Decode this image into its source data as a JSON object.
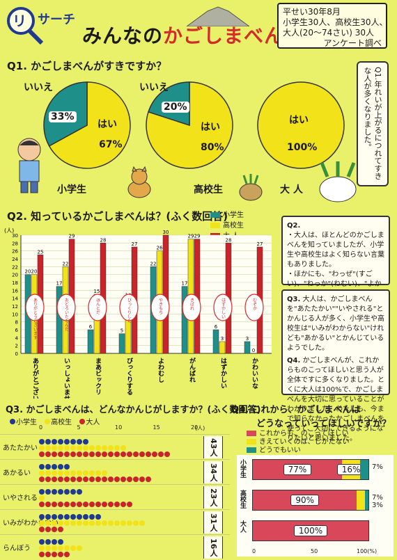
{
  "header": {
    "brand_letter": "リ",
    "brand_text": "サーチ",
    "title_prefix": "みんなの",
    "title_highlight": "かごしまべん",
    "title_suffix": "！",
    "survey_lines": [
      "平せい30年8月",
      "小学生30人、高校生30人、",
      "大人(20〜74さい) 30人",
      "アンケート調べ"
    ]
  },
  "q1": {
    "title": "Q1. かごしまべんがすきですか？",
    "pies": [
      {
        "group": "小学生",
        "yes_label": "はい",
        "no_label": "いいえ",
        "yes_pct": 67,
        "no_pct": 33,
        "yes_text": "67%",
        "no_text": "33%"
      },
      {
        "group": "高校生",
        "yes_label": "はい",
        "no_label": "いいえ",
        "yes_pct": 80,
        "no_pct": 20,
        "yes_text": "80%",
        "no_text": "20%"
      },
      {
        "group": "大 人",
        "yes_label": "はい",
        "no_label": "",
        "yes_pct": 100,
        "no_pct": 0,
        "yes_text": "100%",
        "no_text": ""
      }
    ],
    "note_label": "Q1.",
    "note": "年れいが上がるにつれてすきな人が多くなりました。",
    "colors": {
      "yes": "#f2e21a",
      "no": "#1f8f8a"
    }
  },
  "q2": {
    "title": "Q2. 知っているかごしまべんは？(ふく数回答)",
    "unit": "(人)",
    "legend": [
      {
        "name": "小学生",
        "color": "#1f8f8a"
      },
      {
        "name": "高校生",
        "color": "#f2e21a"
      },
      {
        "name": "大 人",
        "color": "#c8242a"
      }
    ],
    "meanings": [
      "ありがとうございます",
      "おどろいたもんだ",
      "ほんとだ",
      "びっくりした",
      "やきもち",
      "きばれ",
      "はずかしい",
      "むぞか"
    ],
    "note_label": "Q2.",
    "note_lines": [
      "・大人は、ほとんどのかごしまべんを知っていましたが、小学生や高校生はよく知らない言葉もありました。",
      "・ほかにも、\"わっぜ\"(すごい)、\"ねっか\"(ねむい)、\"よかにせ\"(かっこいい人)、\"じゃっど\"(そうだね)、\"おでゃ\"(おまえ)など、かごしまべんを教えてもらいました。"
    ]
  },
  "chart_data": [
    {
      "type": "pie",
      "title": "Q1. かごしまべんがすきですか？",
      "pies": [
        {
          "name": "小学生",
          "slices": [
            {
              "label": "はい",
              "value": 67
            },
            {
              "label": "いいえ",
              "value": 33
            }
          ]
        },
        {
          "name": "高校生",
          "slices": [
            {
              "label": "はい",
              "value": 80
            },
            {
              "label": "いいえ",
              "value": 20
            }
          ]
        },
        {
          "name": "大 人",
          "slices": [
            {
              "label": "はい",
              "value": 100
            }
          ]
        }
      ]
    },
    {
      "type": "bar",
      "title": "Q2. 知っているかごしまべんは？(ふく数回答)",
      "ylabel": "(人)",
      "ylim": [
        0,
        30
      ],
      "yticks": [
        0,
        5,
        10,
        15,
        20,
        25,
        30
      ],
      "categories": [
        "ありがとございます",
        "いっしょいませ",
        "まあビックリ",
        "びっくりする",
        "よわむし",
        "がんばれ",
        "はずかしい",
        "かわいいな"
      ],
      "series": [
        {
          "name": "小学生",
          "values": [
            20,
            17,
            6,
            5,
            22,
            17,
            6,
            3
          ]
        },
        {
          "name": "高校生",
          "values": [
            20,
            22,
            15,
            14,
            26,
            29,
            3,
            0
          ]
        },
        {
          "name": "大 人",
          "values": [
            25,
            29,
            28,
            27,
            30,
            29,
            28,
            27
          ]
        }
      ]
    },
    {
      "type": "bar",
      "title": "Q3. かごしまべんは、どんなかんじがしますか？(ふく数回答)",
      "orientation": "horizontal",
      "xlabel": "(人)",
      "xlim": [
        0,
        20
      ],
      "xticks": [
        0,
        5,
        10,
        15,
        20
      ],
      "categories": [
        "あたたかい",
        "あかるい",
        "いやされる",
        "いみがわからない",
        "らんぼう"
      ],
      "series": [
        {
          "name": "小学生",
          "values": [
            8,
            5,
            7,
            10,
            4
          ]
        },
        {
          "name": "高校生",
          "values": [
            14,
            11,
            1,
            17,
            7
          ]
        },
        {
          "name": "大人",
          "values": [
            21,
            18,
            15,
            4,
            5
          ]
        }
      ],
      "totals": [
        "43人",
        "34人",
        "23人",
        "31人",
        "16人"
      ]
    },
    {
      "type": "bar",
      "title": "Q4. これから、かごしまべんはどうなっていってほしいですか？",
      "orientation": "horizontal",
      "stacked": true,
      "xticks": [
        "0",
        "50",
        "100(%)"
      ],
      "categories": [
        "小学生",
        "高校生",
        "大人"
      ],
      "series": [
        {
          "name": "これからも、のこってほしい",
          "values": [
            77,
            90,
            100
          ]
        },
        {
          "name": "きえていくのは、しかたない",
          "values": [
            16,
            7,
            0
          ]
        },
        {
          "name": "どうでもいい",
          "values": [
            7,
            3,
            0
          ]
        }
      ]
    }
  ],
  "q3": {
    "title": "Q3. かごしまべんは、どんなかんじがしますか？(ふく数回答)",
    "legend": [
      {
        "name": "小学生",
        "color": "#1f3a8f"
      },
      {
        "name": "高校生",
        "color": "#f2e21a"
      },
      {
        "name": "大人",
        "color": "#c8242a"
      }
    ]
  },
  "q4": {
    "title_line1": "Q4. これから、かごしまべんは",
    "title_line2": "どうなっていってほしいですか？",
    "legend": [
      {
        "name": "これからも、のこってほしい",
        "color": "#d9475a"
      },
      {
        "name": "きえていくのは、しかたない",
        "color": "#f2e21a"
      },
      {
        "name": "どうでもいい",
        "color": "#1f8f8a"
      }
    ],
    "labels": [
      [
        "77%",
        "16%",
        "7%"
      ],
      [
        "90%",
        "7%",
        "3%"
      ],
      [
        "100%",
        "",
        ""
      ]
    ]
  },
  "notes_right": {
    "q3_label": "Q3.",
    "q3": "大人は、かごしまべんを\"あたたかい\"\"いやされる\"とかんじる人が多く、小学生や高校生は\"いみがわからない\"けれども\"あかるい\"とかんじているようでした。",
    "q4_label": "Q4.",
    "q4": "かごしまべんが、これからものこってほしいと思う人が全体ですに多くなりました。とくに大人は100%で、かごしまべんを大切に思っていることがわかりました。わたしも、今まで知らなかったかごしまべんを使って、大切にできるようになりたいと思いました。"
  }
}
